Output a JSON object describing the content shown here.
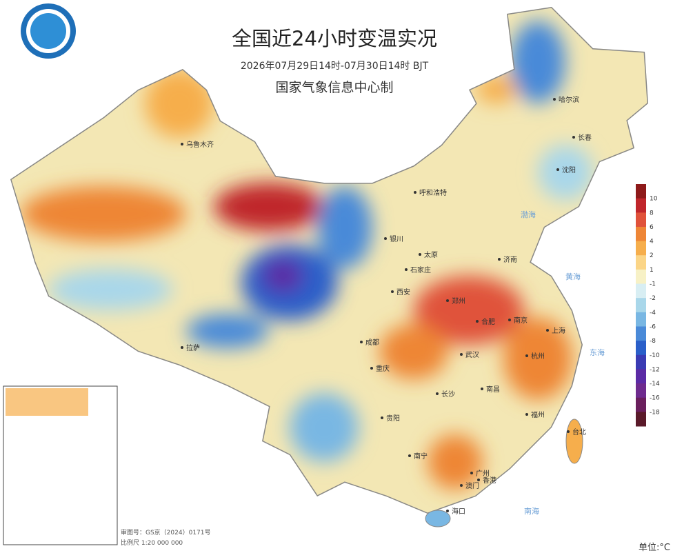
{
  "header": {
    "title": "全国近24小时变温实况",
    "subtitle": "2026年07月29日14时-07月30日14时 BJT",
    "agency": "国家气象信息中心制"
  },
  "legend": {
    "ticks": [
      10,
      8,
      6,
      4,
      2,
      1,
      -1,
      -2,
      -4,
      -6,
      -8,
      -10,
      -12,
      -14,
      -16,
      -18
    ],
    "colors": [
      "#8e1a1a",
      "#c0262b",
      "#e0523a",
      "#ee8636",
      "#f6ae4c",
      "#fbd587",
      "#f7f1c6",
      "#d8eef3",
      "#a9d7ea",
      "#79b7e3",
      "#4a8ad8",
      "#2a5fc9",
      "#3a3bb3",
      "#5b2ba5",
      "#6e2b8e",
      "#6a1f5d",
      "#5a1a2a"
    ],
    "unit": "单位:°C"
  },
  "cities": [
    "乌鲁木齐",
    "哈尔滨",
    "长春",
    "沈阳",
    "呼和浩特",
    "银川",
    "石家庄",
    "太原",
    "济南",
    "西安",
    "郑州",
    "合肥",
    "南京",
    "上海",
    "杭州",
    "武汉",
    "重庆",
    "长沙",
    "南昌",
    "福州",
    "台北",
    "贵阳",
    "南宁",
    "广州",
    "海口",
    "拉萨",
    "成都",
    "澳门",
    "香港"
  ],
  "seas": [
    "渤海",
    "黄海",
    "东海",
    "南海"
  ],
  "footer": {
    "approval": "审图号：GS京（2024）0171号",
    "scale": "比例尺 1:20 000 000"
  }
}
